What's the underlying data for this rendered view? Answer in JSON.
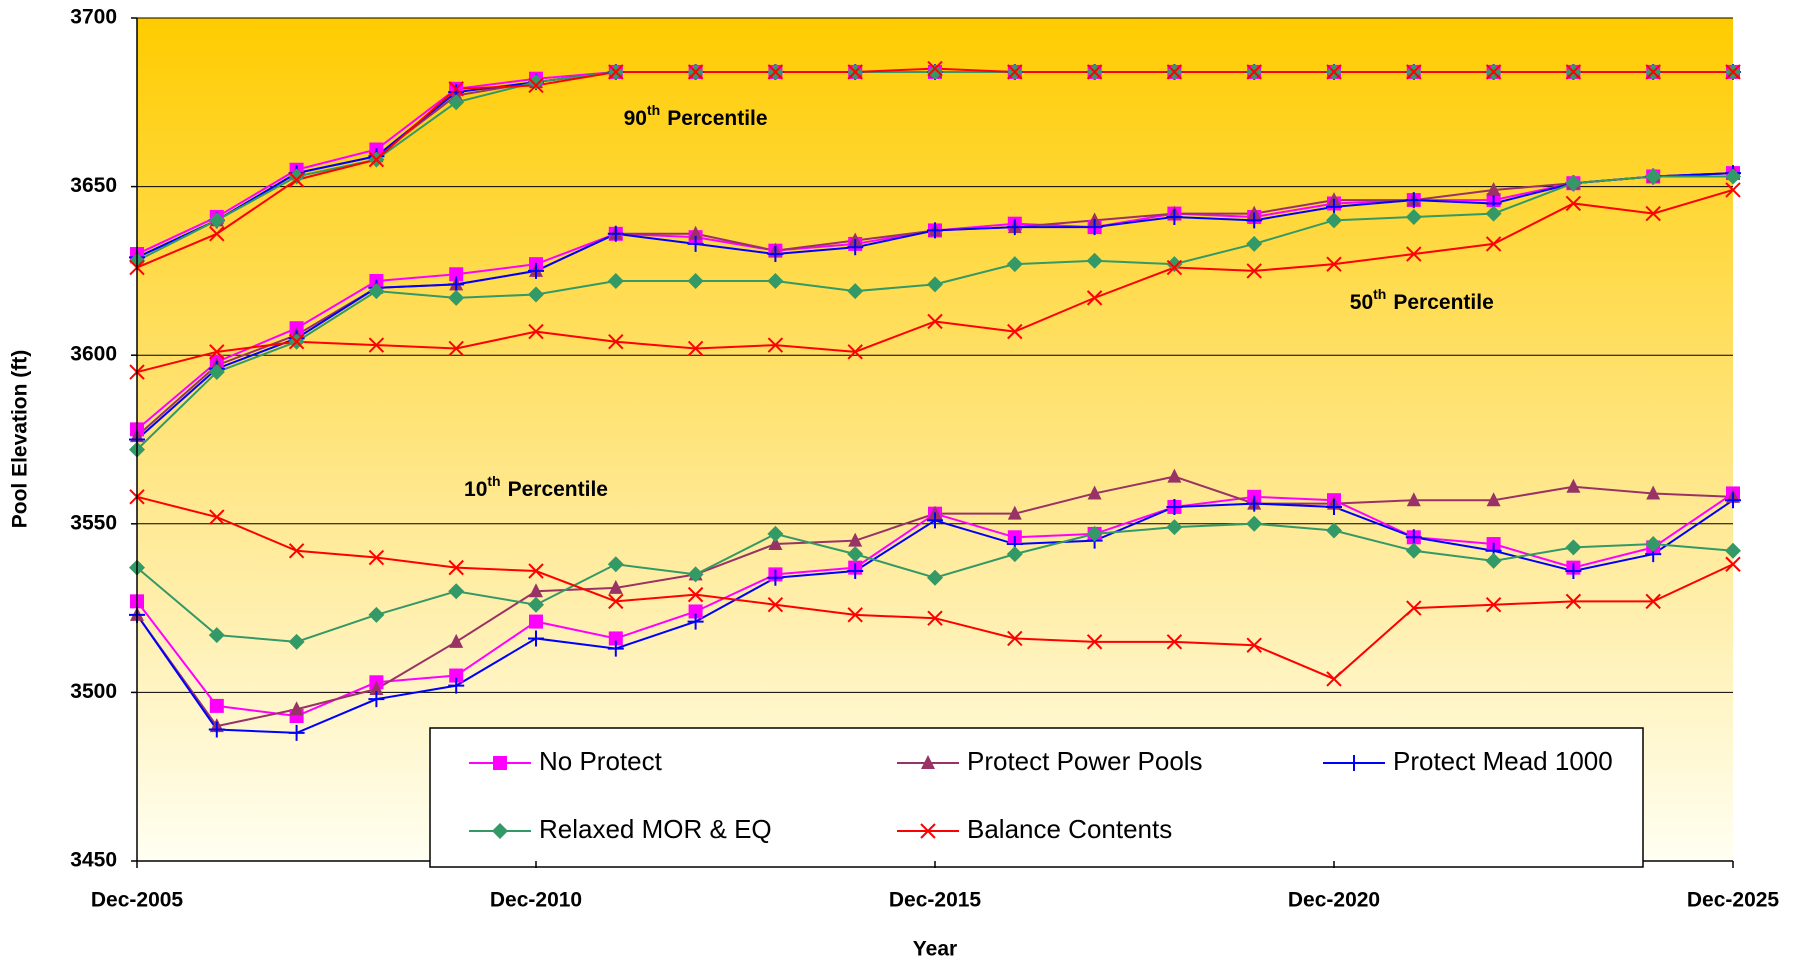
{
  "chart_data": {
    "type": "line",
    "xlabel": "Year",
    "ylabel": "Pool Elevation (ft)",
    "x": [
      2005,
      2006,
      2007,
      2008,
      2009,
      2010,
      2011,
      2012,
      2013,
      2014,
      2015,
      2016,
      2017,
      2018,
      2019,
      2020,
      2021,
      2022,
      2023,
      2024,
      2025
    ],
    "xlim": [
      2005,
      2025
    ],
    "xticks": [
      {
        "value": 2005,
        "label": "Dec-2005"
      },
      {
        "value": 2010,
        "label": "Dec-2010"
      },
      {
        "value": 2015,
        "label": "Dec-2015"
      },
      {
        "value": 2020,
        "label": "Dec-2020"
      },
      {
        "value": 2025,
        "label": "Dec-2025"
      }
    ],
    "ylim": [
      3450,
      3700
    ],
    "yticks": [
      3450,
      3500,
      3550,
      3600,
      3650,
      3700
    ],
    "grid": true,
    "annotations": [
      {
        "number": "90",
        "suffix": "th",
        "text": "Percentile",
        "x": 2012,
        "y": 3670
      },
      {
        "number": "50",
        "suffix": "th",
        "text": "Percentile",
        "x": 2021.1,
        "y": 3615.5
      },
      {
        "number": "10",
        "suffix": "th",
        "text": "Percentile",
        "x": 2010,
        "y": 3560
      }
    ],
    "series": [
      {
        "name": "No Protect",
        "color": "#ff00ff",
        "marker": "square",
        "p90": [
          3630,
          3641,
          3655,
          3661,
          3679,
          3682,
          3684,
          3684,
          3684,
          3684,
          3684,
          3684,
          3684,
          3684,
          3684,
          3684,
          3684,
          3684,
          3684,
          3684,
          3684
        ],
        "p50": [
          3578,
          3598,
          3608,
          3622,
          3624,
          3627,
          3636,
          3635,
          3631,
          3633,
          3637,
          3639,
          3638,
          3642,
          3641,
          3645,
          3646,
          3646,
          3651,
          3653,
          3654
        ],
        "p10": [
          3527,
          3496,
          3493,
          3503,
          3505,
          3521,
          3516,
          3524,
          3535,
          3537,
          3553,
          3546,
          3547,
          3555,
          3558,
          3557,
          3546,
          3544,
          3537,
          3543,
          3559
        ]
      },
      {
        "name": "Protect Power Pools",
        "color": "#993366",
        "marker": "triangle",
        "p90": [
          3629,
          3640,
          3654,
          3659,
          3677,
          3681,
          3684,
          3684,
          3684,
          3684,
          3684,
          3684,
          3684,
          3684,
          3684,
          3684,
          3684,
          3684,
          3684,
          3684,
          3684
        ],
        "p50": [
          3576,
          3597,
          3606,
          3620,
          3621,
          3625,
          3636,
          3636,
          3631,
          3634,
          3637,
          3638,
          3640,
          3642,
          3642,
          3646,
          3646,
          3649,
          3651,
          3653,
          3654
        ],
        "p10": [
          3523,
          3490,
          3495,
          3501,
          3515,
          3530,
          3531,
          3535,
          3544,
          3545,
          3553,
          3553,
          3559,
          3564,
          3556,
          3556,
          3557,
          3557,
          3561,
          3559,
          3558
        ]
      },
      {
        "name": "Protect Mead 1000",
        "color": "#0000ff",
        "marker": "plus",
        "p90": [
          3629,
          3640,
          3654,
          3659,
          3678,
          3681,
          3684,
          3684,
          3684,
          3684,
          3684,
          3684,
          3684,
          3684,
          3684,
          3684,
          3684,
          3684,
          3684,
          3684,
          3684
        ],
        "p50": [
          3575,
          3596,
          3605,
          3620,
          3621,
          3625,
          3636,
          3633,
          3630,
          3632,
          3637,
          3638,
          3638,
          3641,
          3640,
          3644,
          3646,
          3645,
          3651,
          3653,
          3654
        ],
        "p10": [
          3523,
          3489,
          3488,
          3498,
          3502,
          3516,
          3513,
          3521,
          3534,
          3536,
          3551,
          3544,
          3545,
          3555,
          3556,
          3555,
          3546,
          3542,
          3536,
          3541,
          3557
        ]
      },
      {
        "name": "Relaxed MOR & EQ",
        "color": "#339966",
        "marker": "diamond",
        "p90": [
          3628,
          3640,
          3653,
          3658,
          3675,
          3681,
          3684,
          3684,
          3684,
          3684,
          3684,
          3684,
          3684,
          3684,
          3684,
          3684,
          3684,
          3684,
          3684,
          3684,
          3684
        ],
        "p50": [
          3572,
          3595,
          3604,
          3619,
          3617,
          3618,
          3622,
          3622,
          3622,
          3619,
          3621,
          3627,
          3628,
          3627,
          3633,
          3640,
          3641,
          3642,
          3651,
          3653,
          3653
        ],
        "p10": [
          3537,
          3517,
          3515,
          3523,
          3530,
          3526,
          3538,
          3535,
          3547,
          3541,
          3534,
          3541,
          3547,
          3549,
          3550,
          3548,
          3542,
          3539,
          3543,
          3544,
          3542
        ]
      },
      {
        "name": "Balance Contents",
        "color": "#ff0000",
        "marker": "x",
        "p90": [
          3626,
          3636,
          3652,
          3658,
          3679,
          3680,
          3684,
          3684,
          3684,
          3684,
          3685,
          3684,
          3684,
          3684,
          3684,
          3684,
          3684,
          3684,
          3684,
          3684,
          3684
        ],
        "p50": [
          3595,
          3601,
          3604,
          3603,
          3602,
          3607,
          3604,
          3602,
          3603,
          3601,
          3610,
          3607,
          3617,
          3626,
          3625,
          3627,
          3630,
          3633,
          3645,
          3642,
          3649
        ],
        "p10": [
          3558,
          3552,
          3542,
          3540,
          3537,
          3536,
          3527,
          3529,
          3526,
          3523,
          3522,
          3516,
          3515,
          3515,
          3514,
          3504,
          3525,
          3526,
          3527,
          3527,
          3538
        ]
      }
    ]
  }
}
